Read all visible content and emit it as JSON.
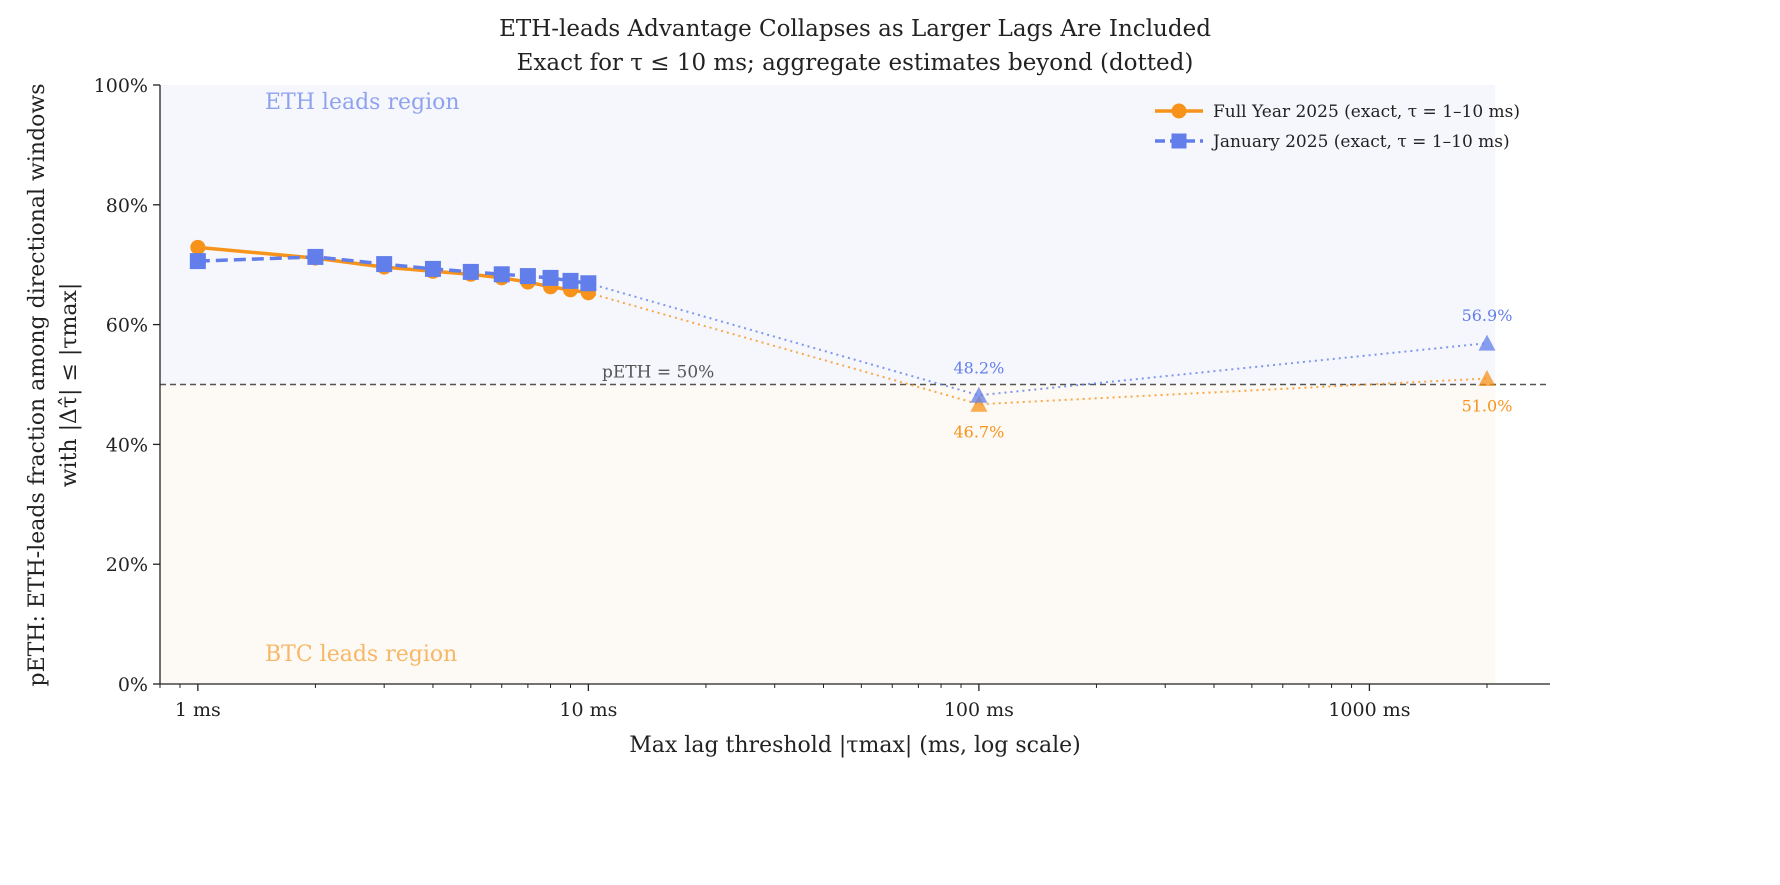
{
  "chart_data": {
    "type": "line",
    "title": "ETH-leads Advantage Collapses as Larger Lags Are Included",
    "subtitle": "Exact for τ ≤ 10 ms; aggregate estimates beyond (dotted)",
    "xlabel": "Max lag threshold |τmax| (ms, log scale)",
    "ylabel": "pETH: ETH-leads fraction among directional windows",
    "ylabel2": "with |Δτ̂| ≤ |τmax|",
    "xscale": "log",
    "xlim": [
      0.8,
      2900
    ],
    "ylim": [
      0,
      100
    ],
    "xticks": [
      1,
      10,
      100,
      1000
    ],
    "xtick_labels": [
      "1 ms",
      "10 ms",
      "100 ms",
      "1000 ms"
    ],
    "yticks": [
      0,
      20,
      40,
      60,
      80,
      100
    ],
    "ytick_labels": [
      "0%",
      "20%",
      "40%",
      "60%",
      "80%",
      "100%"
    ],
    "grid": false,
    "legend_position": "top-right",
    "reference_line": {
      "y": 50,
      "label": "pETH = 50%"
    },
    "region_labels": {
      "upper": "ETH leads region",
      "lower": "BTC leads region"
    },
    "region_colors": {
      "upper": "#f6f7fd",
      "lower": "#fdf9f4"
    },
    "series": [
      {
        "name": "Full Year 2025 (exact, τ = 1–10 ms)",
        "color": "#f7931a",
        "marker": "circle",
        "linestyle": "solid",
        "x": [
          1,
          2,
          3,
          4,
          5,
          6,
          7,
          8,
          9,
          10
        ],
        "y": [
          72.9,
          71.1,
          69.6,
          68.9,
          68.4,
          67.8,
          67.1,
          66.3,
          65.8,
          65.3
        ],
        "estimates": {
          "x": [
            100,
            2000
          ],
          "y": [
            46.7,
            51.0
          ],
          "labels": [
            "46.7%",
            "51.0%"
          ]
        }
      },
      {
        "name": "January 2025 (exact, τ = 1–10 ms)",
        "color": "#627eea",
        "marker": "square",
        "linestyle": "dashed",
        "x": [
          1,
          2,
          3,
          4,
          5,
          6,
          7,
          8,
          9,
          10
        ],
        "y": [
          70.6,
          71.3,
          70.1,
          69.3,
          68.8,
          68.4,
          68.1,
          67.8,
          67.3,
          66.9
        ],
        "estimates": {
          "x": [
            100,
            2000
          ],
          "y": [
            48.2,
            56.9
          ],
          "labels": [
            "48.2%",
            "56.9%"
          ]
        }
      }
    ]
  }
}
